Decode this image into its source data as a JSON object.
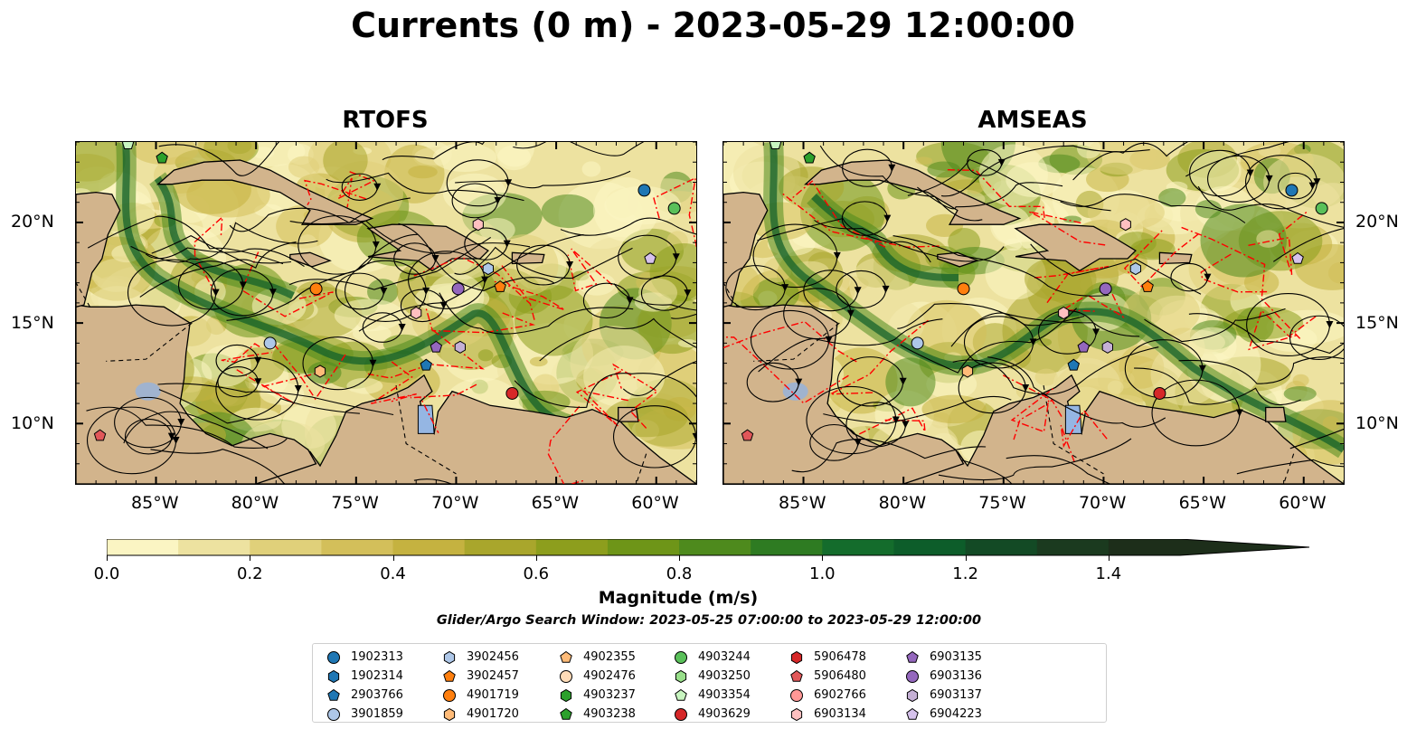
{
  "title": "Currents (0 m) - 2023-05-29 12:00:00",
  "panels": [
    {
      "id": "rtofs",
      "title": "RTOFS",
      "shows_lat_labels": "left"
    },
    {
      "id": "amseas",
      "title": "AMSEAS",
      "shows_lat_labels": "right"
    }
  ],
  "map_extent": {
    "lon": [
      -89,
      -58
    ],
    "lat": [
      7,
      24
    ]
  },
  "lon_ticks": [
    "85°W",
    "80°W",
    "75°W",
    "70°W",
    "65°W",
    "60°W"
  ],
  "lon_tick_values": [
    -85,
    -80,
    -75,
    -70,
    -65,
    -60
  ],
  "lat_ticks": [
    "20°N",
    "15°N",
    "10°N"
  ],
  "lat_tick_values": [
    20,
    15,
    10
  ],
  "colors": {
    "land": "#d2b48c",
    "water_no_data": "#95b6e3",
    "boundary": "#ff0000",
    "streamline": "#000000"
  },
  "colorbar": {
    "label": "Magnitude (m/s)",
    "ticks": [
      "0.0",
      "0.2",
      "0.4",
      "0.6",
      "0.8",
      "1.0",
      "1.2",
      "1.4"
    ],
    "tick_values": [
      0.0,
      0.2,
      0.4,
      0.6,
      0.8,
      1.0,
      1.2,
      1.4
    ],
    "min": 0.0,
    "max": 1.5,
    "extend": "max",
    "colors": [
      "#fbf5c3",
      "#ede2a0",
      "#e0d07a",
      "#d3bf5a",
      "#c5b240",
      "#a9a62c",
      "#8d9e1d",
      "#6e9518",
      "#4e8a1d",
      "#2e7b22",
      "#146c2c",
      "#0d5d2a",
      "#134a25",
      "#1b3a1f",
      "#1d2e1a"
    ]
  },
  "search_window": "Glider/Argo Search Window: 2023-05-25 07:00:00 to 2023-05-29 12:00:00",
  "legend": [
    {
      "id": "1902313",
      "marker": "circle",
      "color": "#1f77b4"
    },
    {
      "id": "1902314",
      "marker": "hexagon",
      "color": "#1f77b4"
    },
    {
      "id": "2903766",
      "marker": "pentagon",
      "color": "#1f77b4"
    },
    {
      "id": "3901859",
      "marker": "circle",
      "color": "#aec7e8"
    },
    {
      "id": "3902456",
      "marker": "hexagon",
      "color": "#aec7e8"
    },
    {
      "id": "3902457",
      "marker": "pentagon",
      "color": "#ff7f0e"
    },
    {
      "id": "4901719",
      "marker": "circle",
      "color": "#ff7f0e"
    },
    {
      "id": "4901720",
      "marker": "hexagon",
      "color": "#ffbb78"
    },
    {
      "id": "4902355",
      "marker": "pentagon",
      "color": "#ffbb78"
    },
    {
      "id": "4902476",
      "marker": "circle",
      "color": "#ffdcb8"
    },
    {
      "id": "4903237",
      "marker": "hexagon",
      "color": "#2ca02c"
    },
    {
      "id": "4903238",
      "marker": "pentagon",
      "color": "#2ca02c"
    },
    {
      "id": "4903244",
      "marker": "circle",
      "color": "#5ac05a"
    },
    {
      "id": "4903250",
      "marker": "hexagon",
      "color": "#98df8a"
    },
    {
      "id": "4903354",
      "marker": "pentagon",
      "color": "#c8f5c0"
    },
    {
      "id": "4903629",
      "marker": "circle",
      "color": "#d62728"
    },
    {
      "id": "5906478",
      "marker": "hexagon",
      "color": "#d62728"
    },
    {
      "id": "5906480",
      "marker": "pentagon",
      "color": "#e15759"
    },
    {
      "id": "6902766",
      "marker": "circle",
      "color": "#ff9896"
    },
    {
      "id": "6903134",
      "marker": "hexagon",
      "color": "#ffc0c0"
    },
    {
      "id": "6903135",
      "marker": "pentagon",
      "color": "#9467bd"
    },
    {
      "id": "6903136",
      "marker": "circle",
      "color": "#9467bd"
    },
    {
      "id": "6903137",
      "marker": "hexagon",
      "color": "#c5b0d5"
    },
    {
      "id": "6904223",
      "marker": "pentagon",
      "color": "#d6c2ec"
    }
  ],
  "floats": [
    {
      "id": "1902313",
      "lon": -60.6,
      "lat": 21.6
    },
    {
      "id": "4903244",
      "lon": -59.1,
      "lat": 20.7
    },
    {
      "id": "6904223",
      "lon": -60.3,
      "lat": 18.2
    },
    {
      "id": "6903134",
      "lon": -68.9,
      "lat": 19.9
    },
    {
      "id": "3902456",
      "lon": -68.4,
      "lat": 17.7
    },
    {
      "id": "6903136",
      "lon": -69.9,
      "lat": 16.7
    },
    {
      "id": "4901719",
      "lon": -77.0,
      "lat": 16.7
    },
    {
      "id": "3902457",
      "lon": -67.8,
      "lat": 16.8
    },
    {
      "id": "6903134",
      "lon": -72.0,
      "lat": 15.5
    },
    {
      "id": "3901859",
      "lon": -79.3,
      "lat": 14.0
    },
    {
      "id": "6903135",
      "lon": -71.0,
      "lat": 13.8
    },
    {
      "id": "6903137",
      "lon": -69.8,
      "lat": 13.8
    },
    {
      "id": "2903766",
      "lon": -71.5,
      "lat": 12.9
    },
    {
      "id": "4901720",
      "lon": -76.8,
      "lat": 12.6
    },
    {
      "id": "4903629",
      "lon": -67.2,
      "lat": 11.5
    },
    {
      "id": "5906480",
      "lon": -87.8,
      "lat": 9.4
    },
    {
      "id": "4903354",
      "lon": -86.4,
      "lat": 23.9
    },
    {
      "id": "4903238",
      "lon": -84.7,
      "lat": 23.2
    }
  ]
}
